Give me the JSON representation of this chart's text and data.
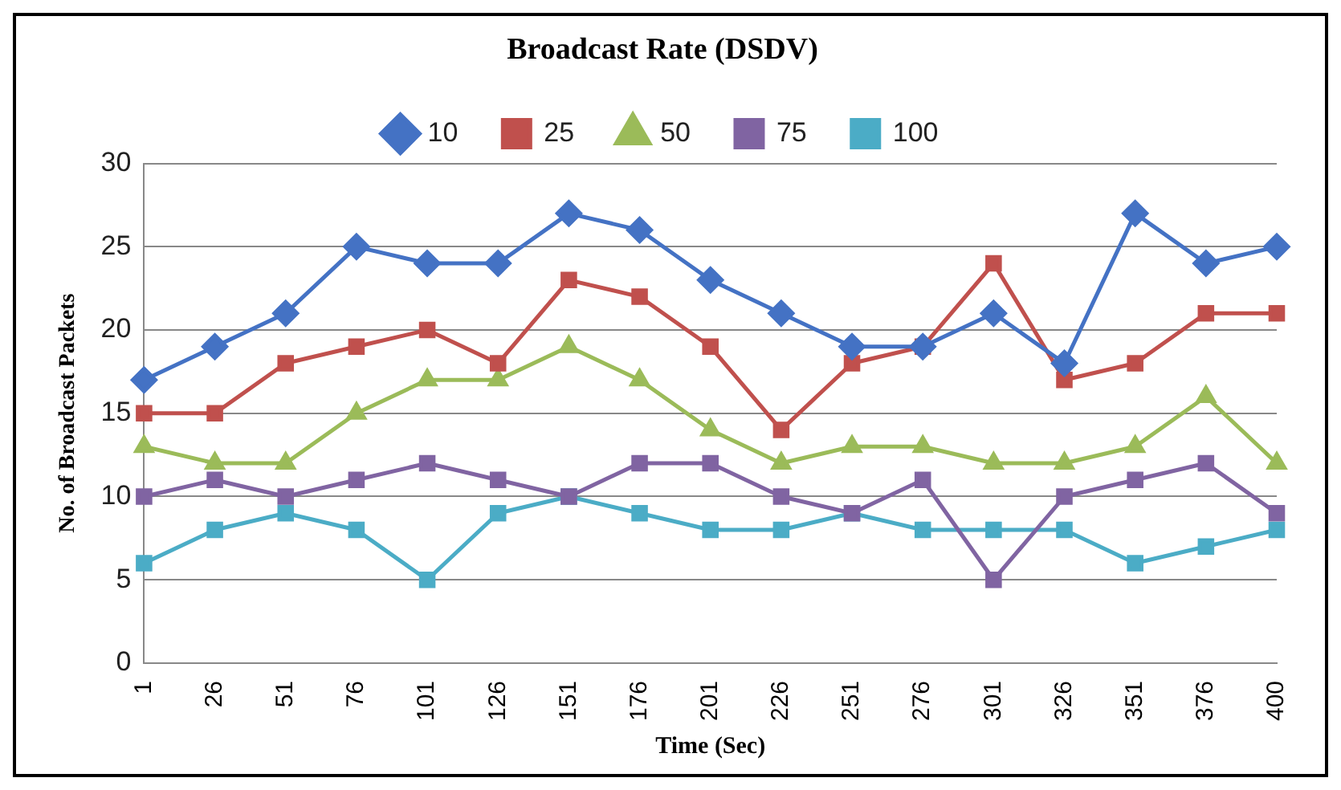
{
  "chart_data": {
    "type": "line",
    "title": "Broadcast Rate (DSDV)",
    "xlabel": "Time (Sec)",
    "ylabel": "No. of Broadcast Packets",
    "categories": [
      "1",
      "26",
      "51",
      "76",
      "101",
      "126",
      "151",
      "176",
      "201",
      "226",
      "251",
      "276",
      "301",
      "326",
      "351",
      "376",
      "400"
    ],
    "series": [
      {
        "name": "10",
        "color": "#4472c4",
        "marker": "diamond",
        "values": [
          17,
          19,
          21,
          25,
          24,
          24,
          27,
          26,
          23,
          21,
          19,
          19,
          21,
          18,
          27,
          24,
          25
        ]
      },
      {
        "name": "25",
        "color": "#c0504d",
        "marker": "square",
        "values": [
          15,
          15,
          18,
          19,
          20,
          18,
          23,
          22,
          19,
          14,
          18,
          19,
          24,
          17,
          18,
          21,
          21
        ]
      },
      {
        "name": "50",
        "color": "#9bbb59",
        "marker": "triangle",
        "values": [
          13,
          12,
          12,
          15,
          17,
          17,
          19,
          17,
          14,
          12,
          13,
          13,
          12,
          12,
          13,
          16,
          12
        ]
      },
      {
        "name": "75",
        "color": "#8064a2",
        "marker": "square",
        "values": [
          10,
          11,
          10,
          11,
          12,
          11,
          10,
          12,
          12,
          10,
          9,
          11,
          5,
          10,
          11,
          12,
          9
        ]
      },
      {
        "name": "100",
        "color": "#4bacc6",
        "marker": "square",
        "values": [
          6,
          8,
          9,
          8,
          5,
          9,
          10,
          9,
          8,
          8,
          9,
          8,
          8,
          8,
          6,
          7,
          8
        ]
      }
    ],
    "ylim": [
      0,
      30
    ],
    "yticks": [
      0,
      5,
      10,
      15,
      20,
      25,
      30
    ],
    "grid": "y",
    "legend": "top",
    "line_style": "solid"
  }
}
